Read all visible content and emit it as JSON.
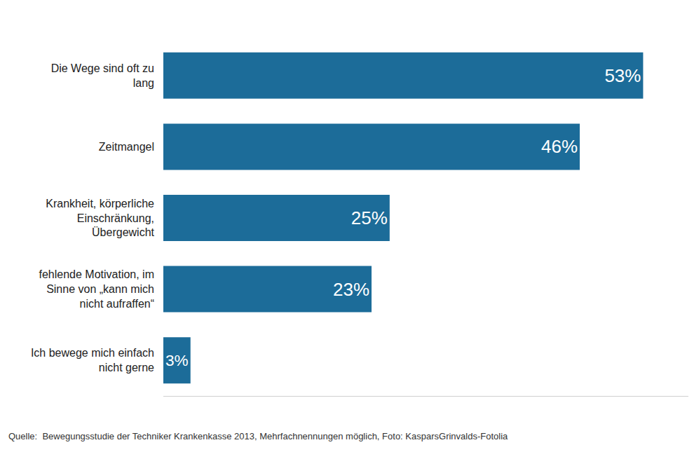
{
  "chart_data": {
    "type": "bar",
    "orientation": "horizontal",
    "categories": [
      "Die Wege sind oft zu lang",
      "Zeitmangel",
      "Krankheit, körperliche Einschränkung, Übergewicht",
      "fehlende Motivation, im Sinne von „kann mich nicht aufraffen“",
      "Ich bewege mich einfach nicht gerne"
    ],
    "values": [
      53,
      46,
      25,
      23,
      3
    ],
    "value_labels": [
      "53%",
      "46%",
      "25%",
      "23%",
      "3%"
    ],
    "data_labels": true,
    "color": "#1c6c99",
    "xlim": [
      0,
      58
    ],
    "tick_labels": "y",
    "grid": false,
    "annotations": [
      "Quelle:  Bewegungsstudie der Techniker Krankenkasse 2013, Mehrfachnennungen möglich, Foto: KasparsGrinvalds-Fotolia"
    ]
  }
}
